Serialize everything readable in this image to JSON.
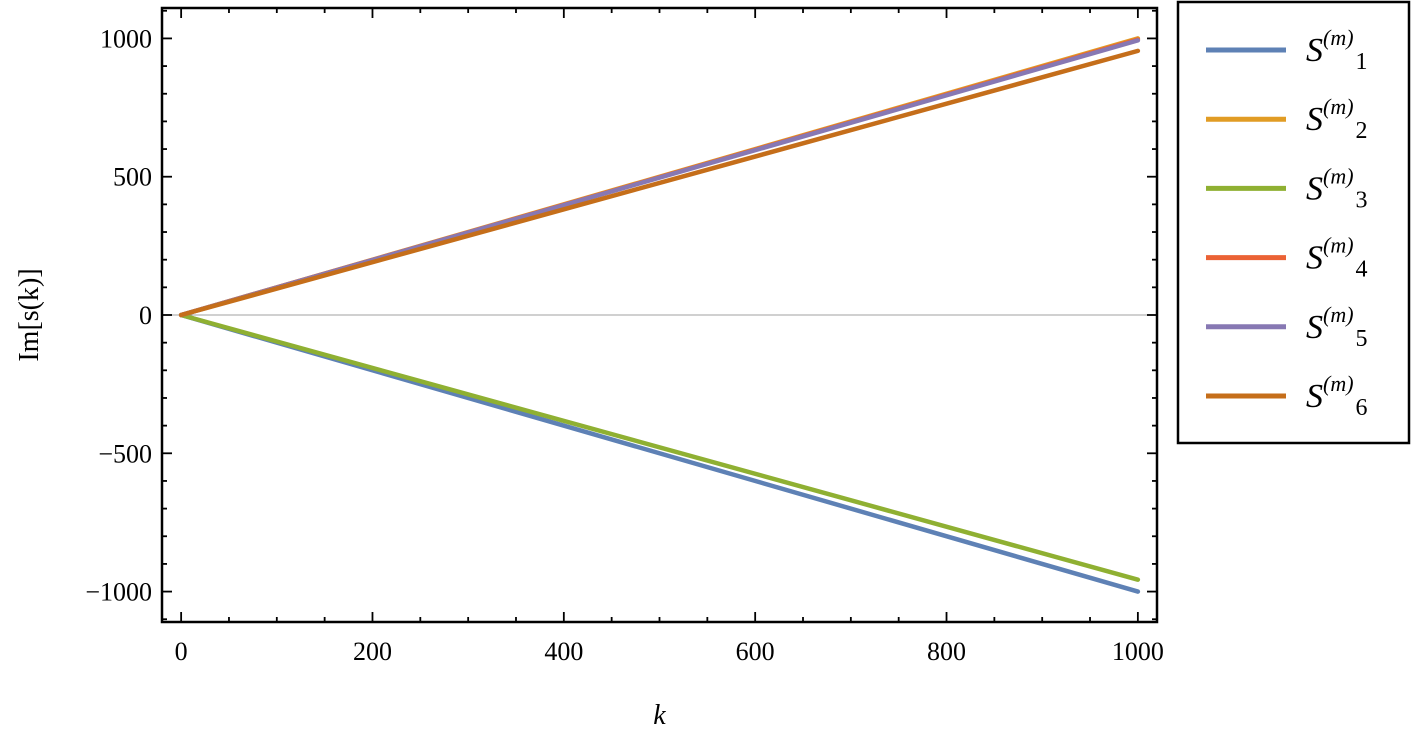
{
  "chart_data": {
    "type": "line",
    "title": "",
    "xlabel": "k",
    "ylabel": "Im[s(k)]",
    "xlim": [
      -20,
      1020
    ],
    "ylim": [
      -1110,
      1110
    ],
    "xticks": [
      0,
      200,
      400,
      600,
      800,
      1000
    ],
    "xtick_labels": [
      "0",
      "200",
      "400",
      "600",
      "800",
      "1000"
    ],
    "yticks": [
      1000,
      500,
      0,
      -500,
      -1000
    ],
    "ytick_labels": [
      "1000",
      "500",
      "0",
      "−500",
      "−1000"
    ],
    "grid": false,
    "zero_line": true,
    "legend_position": "right",
    "series": [
      {
        "name": "S(m)1",
        "legend": {
          "base": "S",
          "sup": "(m)",
          "sub": "1"
        },
        "color": "#5E81B5",
        "x": [
          0,
          1000
        ],
        "y": [
          0,
          -1000
        ]
      },
      {
        "name": "S(m)2",
        "legend": {
          "base": "S",
          "sup": "(m)",
          "sub": "2"
        },
        "color": "#E19C24",
        "x": [
          0,
          1000
        ],
        "y": [
          0,
          1000
        ]
      },
      {
        "name": "S(m)3",
        "legend": {
          "base": "S",
          "sup": "(m)",
          "sub": "3"
        },
        "color": "#8FB032",
        "x": [
          0,
          1000
        ],
        "y": [
          0,
          -957
        ]
      },
      {
        "name": "S(m)4",
        "legend": {
          "base": "S",
          "sup": "(m)",
          "sub": "4"
        },
        "color": "#EB6235",
        "x": [
          0,
          1000
        ],
        "y": [
          0,
          996
        ]
      },
      {
        "name": "S(m)5",
        "legend": {
          "base": "S",
          "sup": "(m)",
          "sub": "5"
        },
        "color": "#8778B3",
        "x": [
          0,
          1000
        ],
        "y": [
          0,
          993
        ]
      },
      {
        "name": "S(m)6",
        "legend": {
          "base": "S",
          "sup": "(m)",
          "sub": "6"
        },
        "color": "#C56E1A",
        "x": [
          0,
          1000
        ],
        "y": [
          0,
          955
        ]
      }
    ]
  }
}
